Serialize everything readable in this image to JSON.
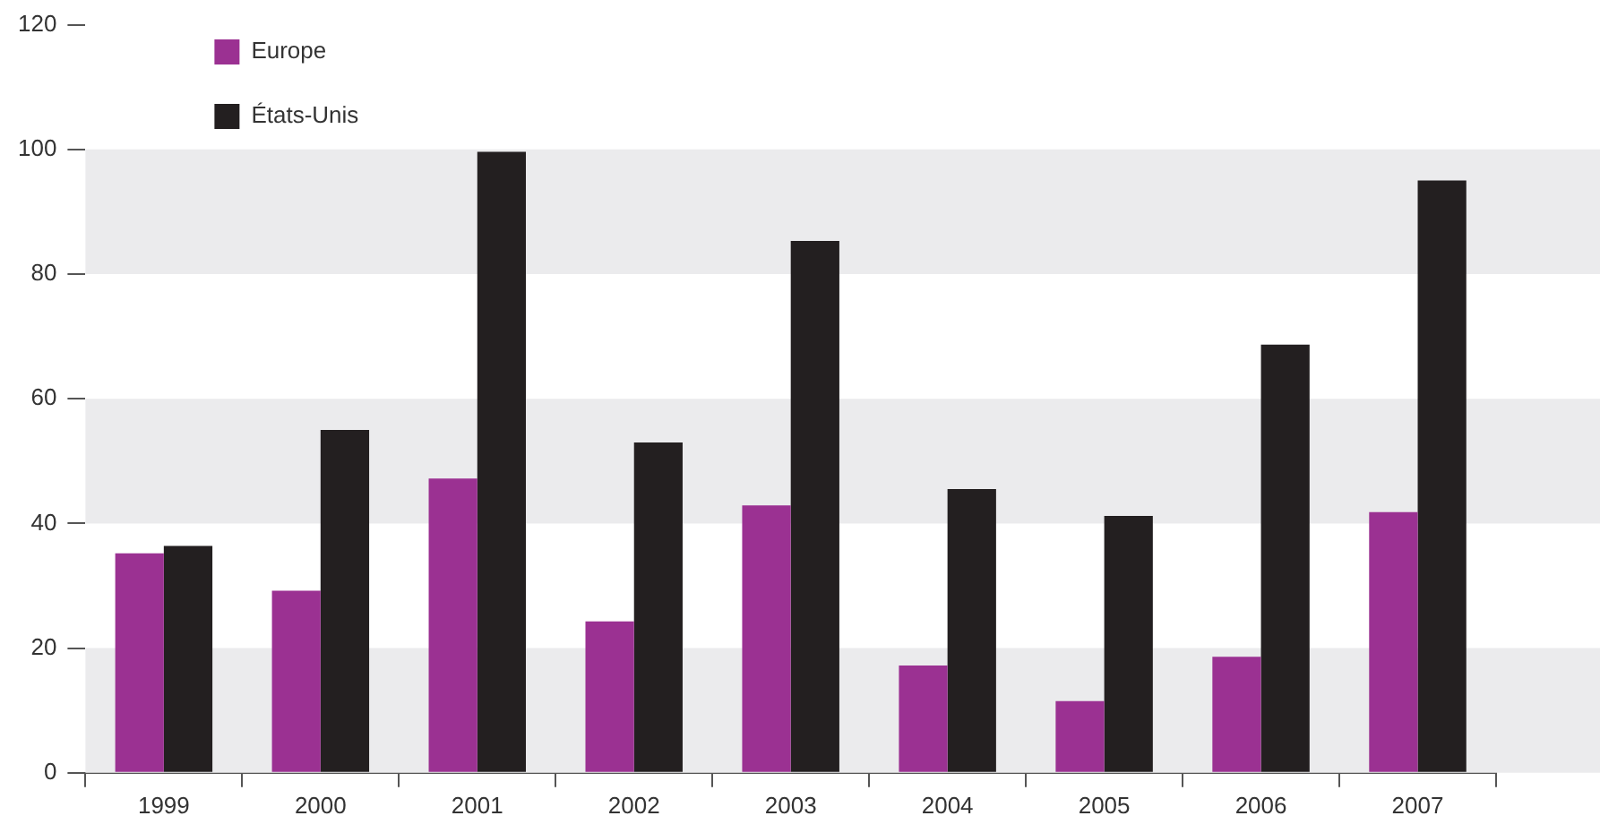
{
  "chart_data": {
    "type": "bar",
    "categories": [
      "1999",
      "2000",
      "2001",
      "2002",
      "2003",
      "2004",
      "2005",
      "2006",
      "2007"
    ],
    "series": [
      {
        "name": "Europe",
        "color": "#9b3192",
        "values": [
          35.2,
          29.2,
          47.2,
          24.3,
          42.9,
          17.2,
          11.5,
          18.6,
          41.8
        ]
      },
      {
        "name": "États-Unis",
        "color": "#231f20",
        "values": [
          36.4,
          55.0,
          99.6,
          53.0,
          85.3,
          45.5,
          41.2,
          68.7,
          95.0
        ]
      }
    ],
    "ylim": [
      0,
      120
    ],
    "yticks": [
      0,
      20,
      40,
      60,
      80,
      100,
      120
    ],
    "legend": "top left",
    "bands": [
      {
        "axis": "y",
        "from": 0,
        "to": 20,
        "color": "#ebebed"
      },
      {
        "axis": "y",
        "from": 40,
        "to": 60,
        "color": "#ebebed"
      },
      {
        "axis": "y",
        "from": 80,
        "to": 100,
        "color": "#ebebed"
      }
    ]
  }
}
